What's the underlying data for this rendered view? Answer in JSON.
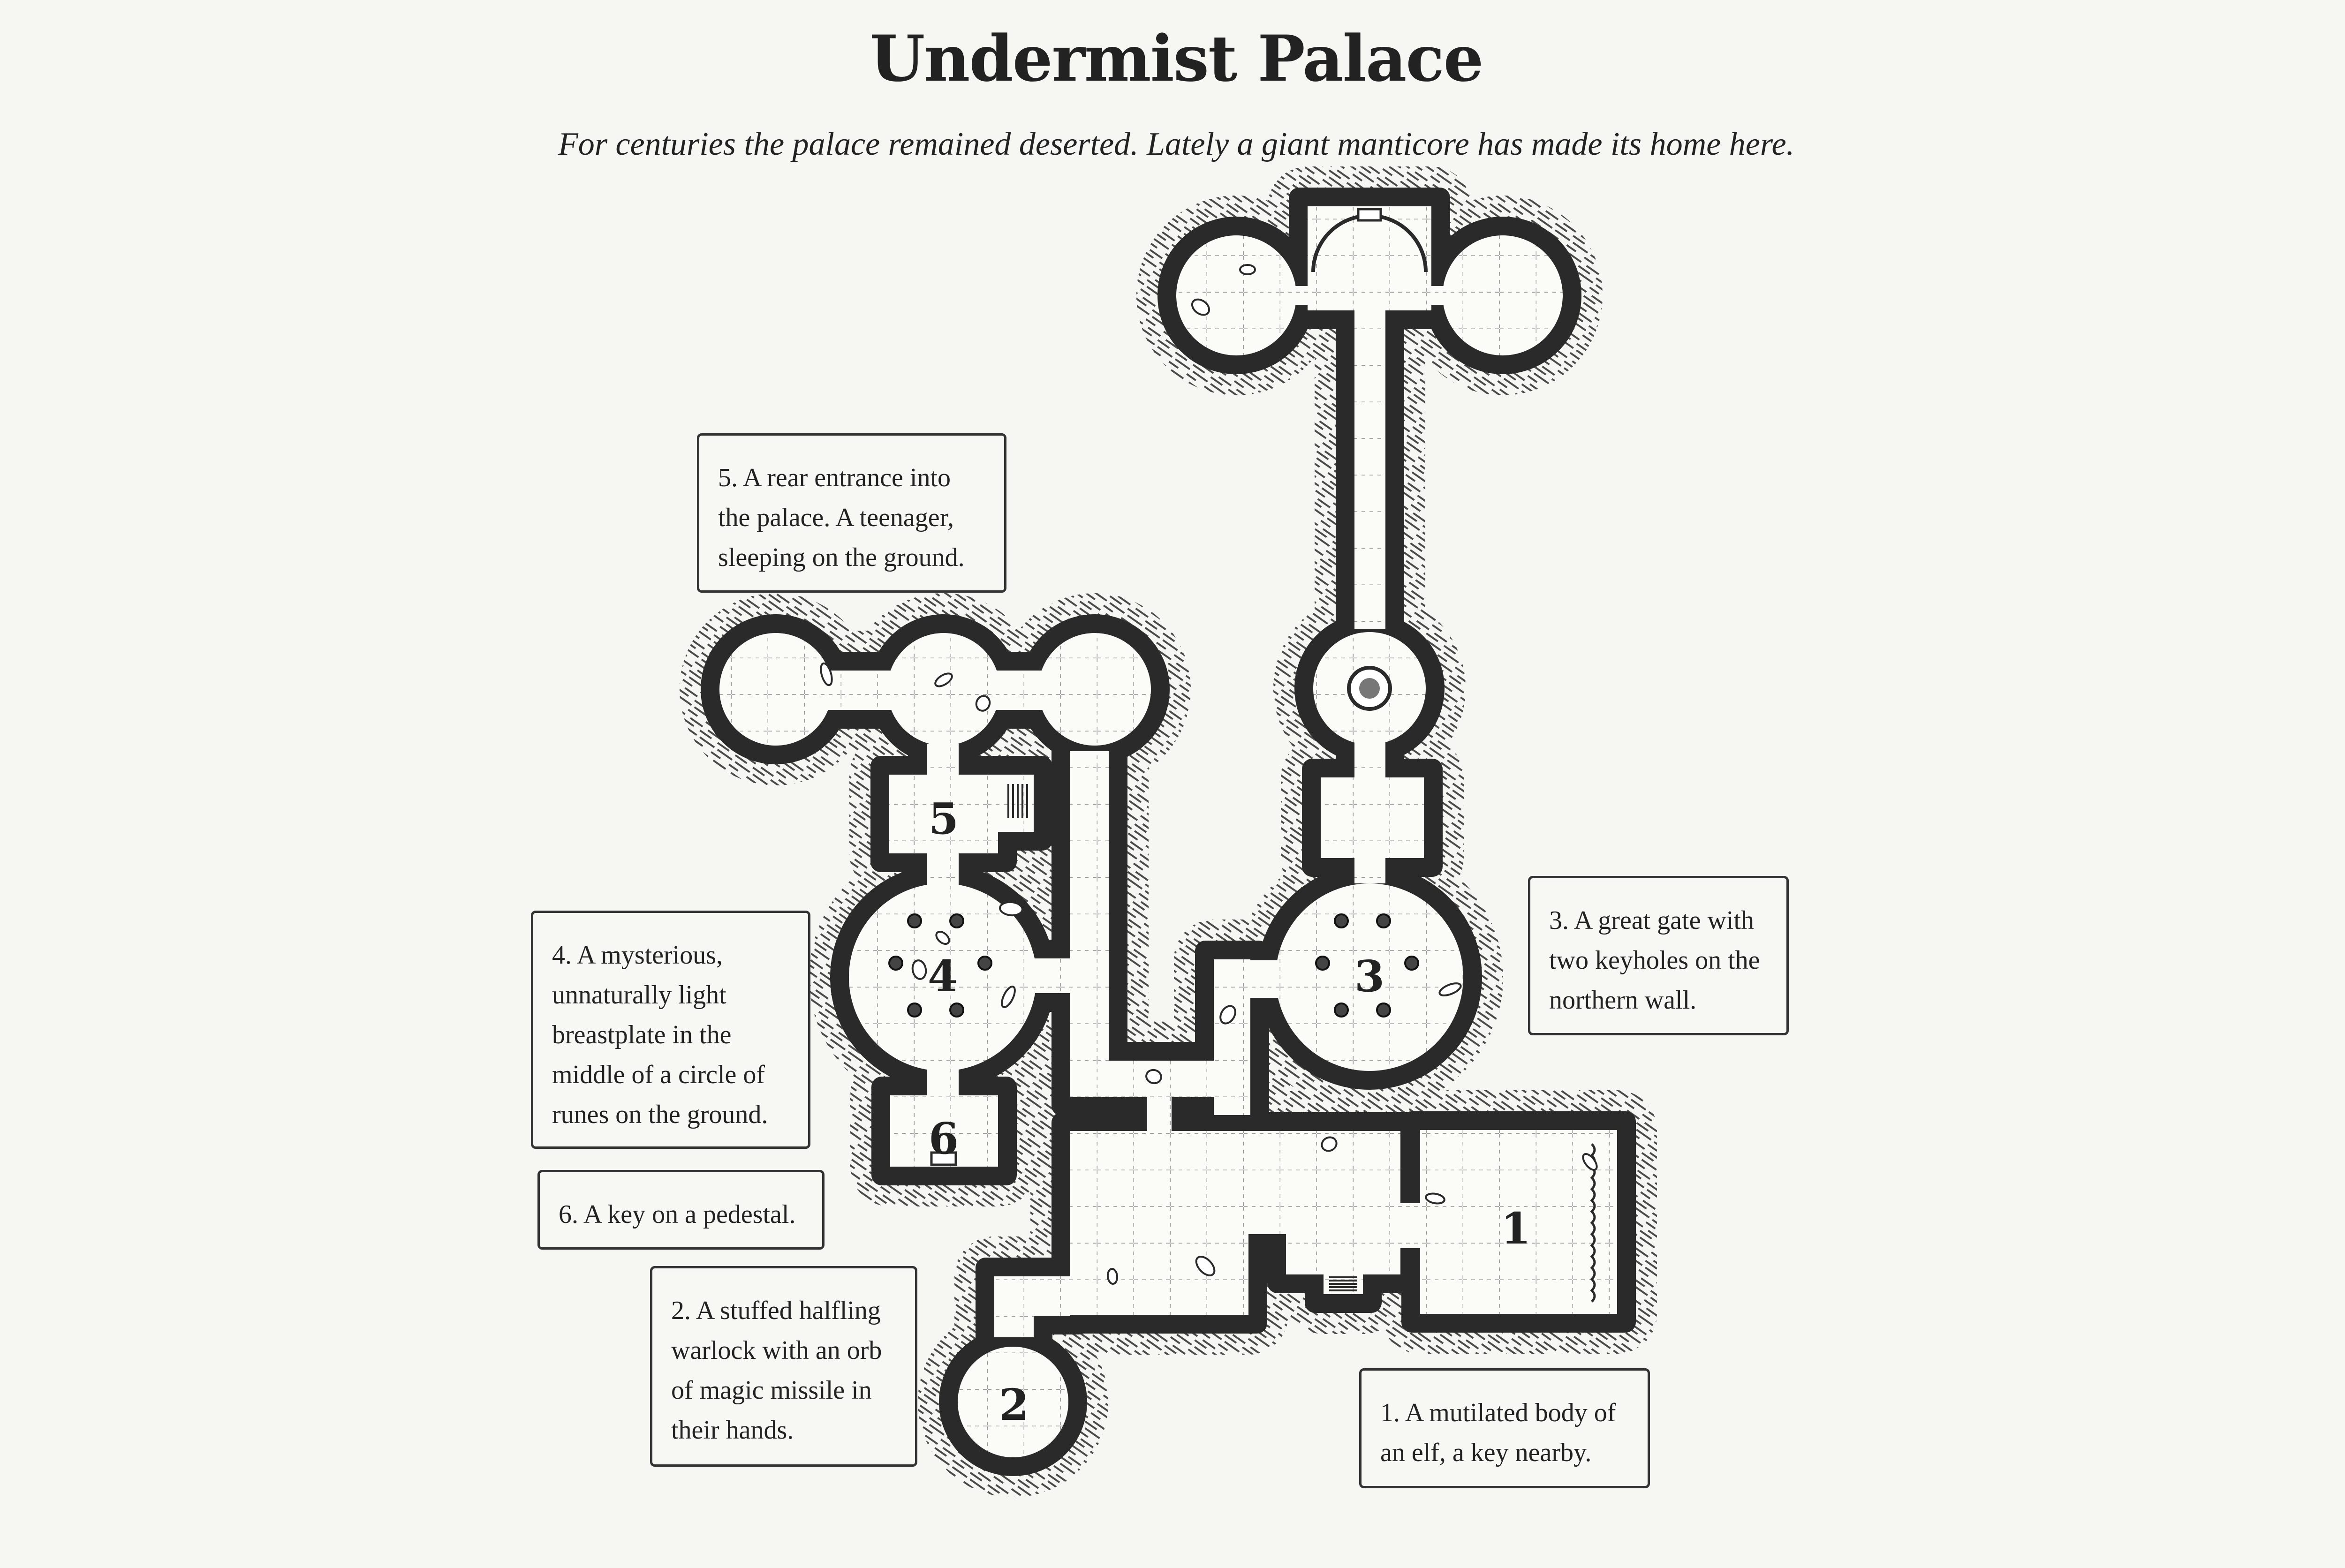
{
  "header": {
    "title": "Undermist Palace",
    "subtitle": "For centuries the palace remained deserted. Lately a giant manticore has made its home here."
  },
  "rooms": {
    "r1": "1",
    "r2": "2",
    "r3": "3",
    "r4": "4",
    "r5": "5",
    "r6": "6"
  },
  "notes": {
    "n1": "1. A mutilated body of an elf, a key nearby.",
    "n2": "2. A stuffed halfling warlock with an orb of magic missile in their hands.",
    "n3": "3. A great gate with two keyholes on the northern wall.",
    "n4": "4. A mysterious, unnaturally light breastplate in the middle of a circle of runes on the ground.",
    "n5": "5. A rear entrance into the palace. A teenager, sleeping on the ground.",
    "n6": "6. A key on a pedestal."
  },
  "colors": {
    "background": "#f6f6f2",
    "floor": "#fbfbf8",
    "wall": "#2a2a2a",
    "hatch": "#555555",
    "grid": "#9a9a9a"
  }
}
